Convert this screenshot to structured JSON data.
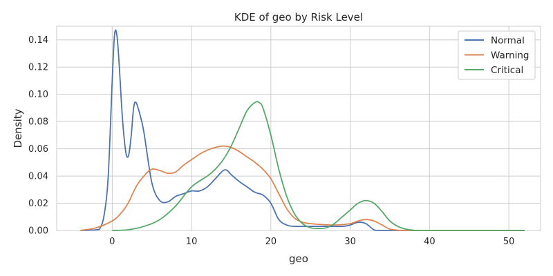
{
  "chart_data": {
    "type": "line",
    "title": "KDE of geo by Risk Level",
    "xlabel": "geo",
    "ylabel": "Density",
    "xlim": [
      -7,
      54
    ],
    "ylim": [
      0,
      0.15
    ],
    "xticks": [
      0,
      10,
      20,
      30,
      40,
      50
    ],
    "yticks": [
      0.0,
      0.02,
      0.04,
      0.06,
      0.08,
      0.1,
      0.12,
      0.14
    ],
    "xtick_labels": [
      "0",
      "10",
      "20",
      "30",
      "40",
      "50"
    ],
    "ytick_labels": [
      "0.00",
      "0.02",
      "0.04",
      "0.06",
      "0.08",
      "0.10",
      "0.12",
      "0.14"
    ],
    "grid": true,
    "legend_position": "top-right",
    "series": [
      {
        "name": "Normal",
        "color": "#4c72b0",
        "x": [
          -4,
          -2,
          -1.5,
          -1,
          -0.5,
          0,
          0.3,
          0.6,
          0.9,
          1.2,
          1.5,
          1.8,
          2.1,
          2.4,
          2.7,
          3,
          3.5,
          4,
          5,
          6,
          7,
          8,
          9,
          10,
          11,
          12,
          13,
          14,
          14.5,
          15,
          16,
          17,
          18,
          19,
          20,
          21,
          22,
          23,
          25,
          27,
          29,
          30,
          31,
          32,
          33,
          34,
          40,
          52
        ],
        "y": [
          0,
          0.0005,
          0.002,
          0.012,
          0.04,
          0.11,
          0.144,
          0.143,
          0.12,
          0.09,
          0.068,
          0.055,
          0.056,
          0.07,
          0.09,
          0.094,
          0.085,
          0.072,
          0.035,
          0.022,
          0.021,
          0.025,
          0.027,
          0.029,
          0.029,
          0.032,
          0.038,
          0.044,
          0.044,
          0.041,
          0.036,
          0.032,
          0.028,
          0.026,
          0.02,
          0.008,
          0.004,
          0.003,
          0.003,
          0.003,
          0.003,
          0.004,
          0.006,
          0.005,
          0.0005,
          0,
          0,
          0
        ]
      },
      {
        "name": "Warning",
        "color": "#dd8452",
        "x": [
          -4,
          -2,
          0,
          1,
          2,
          3,
          4,
          5,
          6,
          7,
          8,
          9,
          10,
          11,
          12,
          13,
          14,
          15,
          16,
          17,
          18,
          19,
          20,
          21,
          22,
          23,
          24,
          25,
          26,
          28,
          30,
          31,
          32,
          33,
          34,
          35,
          36,
          38,
          52
        ],
        "y": [
          0,
          0.002,
          0.007,
          0.012,
          0.02,
          0.032,
          0.04,
          0.045,
          0.044,
          0.042,
          0.043,
          0.048,
          0.052,
          0.056,
          0.059,
          0.061,
          0.062,
          0.061,
          0.058,
          0.054,
          0.05,
          0.045,
          0.038,
          0.027,
          0.016,
          0.009,
          0.006,
          0.005,
          0.0045,
          0.004,
          0.005,
          0.007,
          0.008,
          0.007,
          0.004,
          0.001,
          0.0002,
          0,
          0
        ]
      },
      {
        "name": "Critical",
        "color": "#55a868",
        "x": [
          0,
          2,
          4,
          6,
          8,
          10,
          12,
          13,
          14,
          15,
          16,
          17,
          18,
          18.5,
          19,
          20,
          21,
          22,
          23,
          24,
          25,
          26,
          27,
          28,
          29,
          30,
          31,
          32,
          33,
          34,
          35,
          36,
          37,
          38,
          39,
          52
        ],
        "y": [
          0,
          0.0005,
          0.003,
          0.008,
          0.018,
          0.032,
          0.04,
          0.045,
          0.052,
          0.062,
          0.075,
          0.088,
          0.094,
          0.094,
          0.09,
          0.07,
          0.045,
          0.025,
          0.012,
          0.005,
          0.002,
          0.0015,
          0.002,
          0.005,
          0.01,
          0.015,
          0.02,
          0.022,
          0.02,
          0.014,
          0.007,
          0.003,
          0.001,
          0.0002,
          0,
          0
        ]
      }
    ]
  }
}
